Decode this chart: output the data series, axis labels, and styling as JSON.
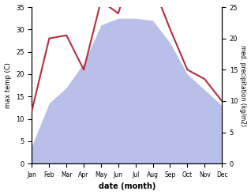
{
  "months": [
    "Jan",
    "Feb",
    "Mar",
    "Apr",
    "May",
    "Jun",
    "Jul",
    "Aug",
    "Sep",
    "Oct",
    "Nov",
    "Dec"
  ],
  "max_temp": [
    4.0,
    13.5,
    17.0,
    22.5,
    31.0,
    32.5,
    32.5,
    32.0,
    27.0,
    20.0,
    16.5,
    13.0
  ],
  "precipitation": [
    8.5,
    20.0,
    20.5,
    15.0,
    26.0,
    24.0,
    33.0,
    28.5,
    21.5,
    15.0,
    13.5,
    10.0
  ],
  "temp_color": "#b03040",
  "precip_fill_color": "#b8bfe8",
  "ylabel_left": "max temp (C)",
  "ylabel_right": "med. precipitation (kg/m2)",
  "xlabel": "date (month)",
  "ylim_left": [
    0,
    35
  ],
  "ylim_right": [
    0,
    25
  ],
  "yticks_left": [
    0,
    5,
    10,
    15,
    20,
    25,
    30,
    35
  ],
  "yticks_right": [
    0,
    5,
    10,
    15,
    20,
    25
  ],
  "bg_color": "#ffffff"
}
